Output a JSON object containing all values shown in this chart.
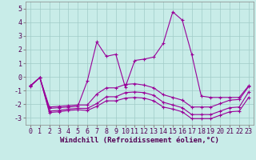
{
  "xlabel": "Windchill (Refroidissement éolien,°C)",
  "background_color": "#c8ece8",
  "grid_color": "#a0ccc8",
  "line_color": "#990099",
  "x_values": [
    0,
    1,
    2,
    3,
    4,
    5,
    6,
    7,
    8,
    9,
    10,
    11,
    12,
    13,
    14,
    15,
    16,
    17,
    18,
    19,
    20,
    21,
    22,
    23
  ],
  "line2_y": [
    -0.7,
    -0.05,
    -2.3,
    -2.25,
    -2.2,
    -2.15,
    -0.3,
    2.55,
    1.5,
    1.65,
    -0.75,
    1.2,
    1.3,
    1.45,
    2.45,
    4.75,
    4.15,
    1.65,
    -1.4,
    -1.5,
    -1.5,
    -1.5,
    -1.5,
    -0.65
  ],
  "line1_y": [
    -0.65,
    -0.05,
    -2.2,
    -2.15,
    -2.1,
    -2.05,
    -2.05,
    -1.25,
    -0.8,
    -0.8,
    -0.55,
    -0.5,
    -0.6,
    -0.8,
    -1.3,
    -1.5,
    -1.7,
    -2.2,
    -2.2,
    -2.2,
    -1.95,
    -1.7,
    -1.65,
    -0.7
  ],
  "line3_y": [
    -0.65,
    -0.05,
    -2.5,
    -2.45,
    -2.35,
    -2.3,
    -2.3,
    -1.95,
    -1.45,
    -1.45,
    -1.15,
    -1.1,
    -1.15,
    -1.35,
    -1.85,
    -2.05,
    -2.25,
    -2.75,
    -2.75,
    -2.75,
    -2.5,
    -2.25,
    -2.2,
    -1.1
  ],
  "line4_y": [
    -0.65,
    -0.05,
    -2.6,
    -2.55,
    -2.45,
    -2.4,
    -2.45,
    -2.15,
    -1.75,
    -1.75,
    -1.55,
    -1.5,
    -1.55,
    -1.75,
    -2.2,
    -2.35,
    -2.55,
    -3.05,
    -3.05,
    -3.05,
    -2.8,
    -2.55,
    -2.5,
    -1.5
  ],
  "ylim": [
    -3.5,
    5.5
  ],
  "yticks": [
    -3,
    -2,
    -1,
    0,
    1,
    2,
    3,
    4,
    5
  ],
  "xticks": [
    0,
    1,
    2,
    3,
    4,
    5,
    6,
    7,
    8,
    9,
    10,
    11,
    12,
    13,
    14,
    15,
    16,
    17,
    18,
    19,
    20,
    21,
    22,
    23
  ],
  "xlabel_fontsize": 6.5,
  "tick_fontsize": 6.0,
  "linewidth": 0.8,
  "markersize": 3.0
}
